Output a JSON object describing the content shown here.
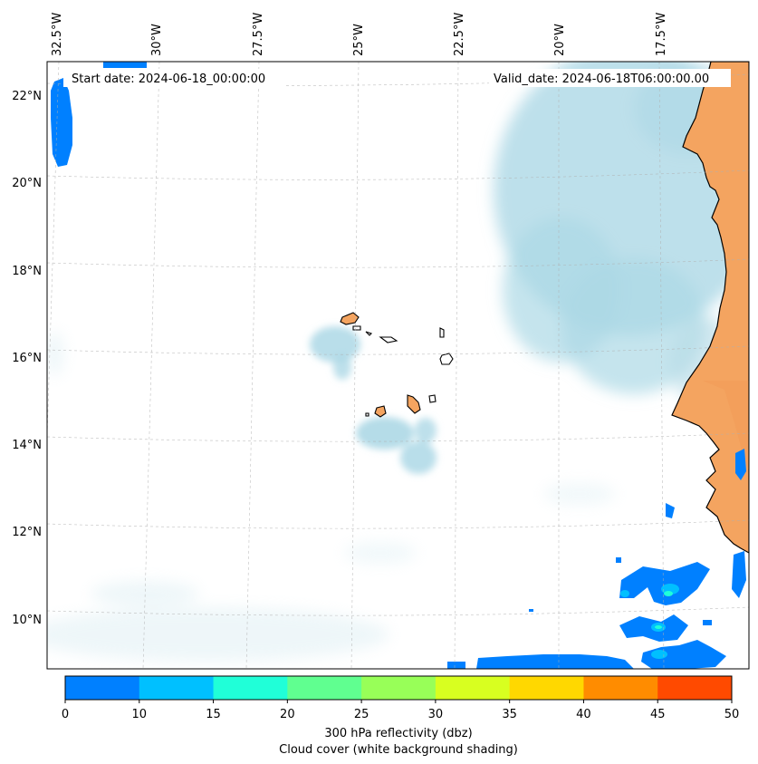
{
  "map": {
    "start_label": "Start date: 2024-06-18_00:00:00",
    "valid_label": "Valid_date: 2024-06-18T06:00:00.00",
    "lon_labels": [
      "32.5°W",
      "30°W",
      "27.5°W",
      "25°W",
      "22.5°W",
      "20°W",
      "17.5°W"
    ],
    "lat_labels": [
      "22°N",
      "20°N",
      "18°N",
      "16°N",
      "14°N",
      "12°N",
      "10°N"
    ],
    "colors": {
      "cloud": "#add8e6",
      "land": "#f4a460",
      "refl_low": "#0080ff"
    }
  },
  "colorbar": {
    "ticks": [
      "0",
      "10",
      "15",
      "20",
      "25",
      "30",
      "35",
      "40",
      "45",
      "50"
    ],
    "colors": [
      "#0080ff",
      "#00c0ff",
      "#20ffd8",
      "#60ff90",
      "#98ff58",
      "#d8ff20",
      "#ffd800",
      "#ff8c00",
      "#ff4a00"
    ],
    "label_line1": "300 hPa reflectivity (dbz)",
    "label_line2": "Cloud cover (white background shading)"
  }
}
